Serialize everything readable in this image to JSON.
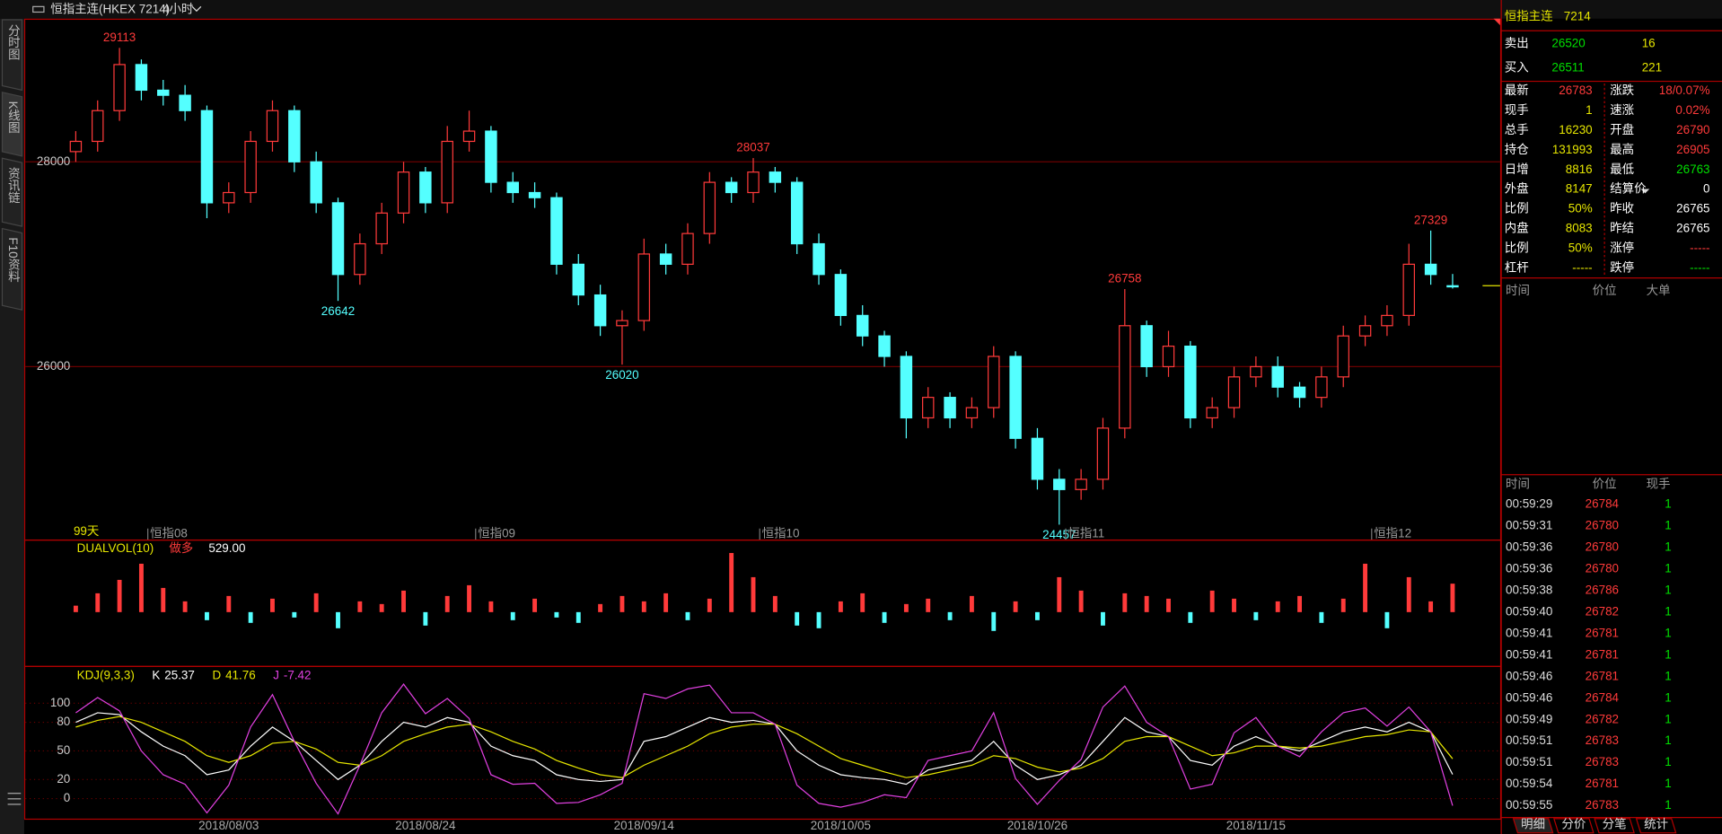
{
  "toolbar": {
    "title": "恒指主连(HKEX 7214)",
    "period": "4小时"
  },
  "side_tabs": [
    "分时图",
    "K线图",
    "资讯链",
    "F10资料"
  ],
  "chart_data": [
    {
      "type": "candlestick",
      "range_label": "99天",
      "categories": [
        null,
        null,
        null,
        null,
        "恒指08",
        null,
        null,
        null,
        null,
        null,
        null,
        null,
        null,
        null,
        null,
        null,
        null,
        null,
        null,
        "恒指09",
        null,
        null,
        null,
        null,
        null,
        null,
        null,
        null,
        null,
        null,
        null,
        null,
        "恒指10",
        null,
        null,
        null,
        null,
        null,
        null,
        null,
        null,
        null,
        null,
        null,
        null,
        null,
        "恒指11",
        null,
        null,
        null,
        null,
        null,
        null,
        null,
        null,
        null,
        null,
        null,
        null,
        null,
        "恒指12",
        null,
        null,
        null
      ],
      "open": [
        28100,
        28200,
        28500,
        28950,
        28700,
        28650,
        28500,
        27600,
        27700,
        28200,
        28500,
        28000,
        27600,
        26900,
        27200,
        27500,
        27900,
        27600,
        28200,
        28300,
        27800,
        27700,
        27650,
        27000,
        26700,
        26400,
        26450,
        27100,
        27000,
        27300,
        27800,
        27700,
        27900,
        27800,
        27200,
        26900,
        26500,
        26300,
        26100,
        25500,
        25700,
        25500,
        25600,
        26100,
        25300,
        24900,
        24800,
        24900,
        25400,
        26400,
        26000,
        26200,
        25500,
        25600,
        25900,
        26000,
        25800,
        25700,
        25900,
        26300,
        26400,
        26500,
        27000,
        26790
      ],
      "high": [
        28300,
        28600,
        29113,
        29000,
        28800,
        28750,
        28550,
        27800,
        28300,
        28600,
        28550,
        28100,
        27650,
        27300,
        27600,
        28000,
        27950,
        28350,
        28500,
        28350,
        27900,
        27800,
        27700,
        27100,
        26800,
        26550,
        27250,
        27200,
        27400,
        27900,
        27850,
        28037,
        27950,
        27850,
        27300,
        26950,
        26600,
        26350,
        26150,
        25800,
        25750,
        25700,
        26200,
        26150,
        25400,
        25000,
        25000,
        25500,
        26758,
        26450,
        26350,
        26250,
        25700,
        26000,
        26100,
        26100,
        25850,
        26000,
        26400,
        26500,
        26600,
        27200,
        27329,
        26905
      ],
      "low": [
        28000,
        28100,
        28400,
        28600,
        28550,
        28400,
        27450,
        27500,
        27600,
        28100,
        27900,
        27500,
        26642,
        26800,
        27100,
        27400,
        27500,
        27500,
        28100,
        27700,
        27600,
        27550,
        26900,
        26600,
        26300,
        26020,
        26350,
        26900,
        26900,
        27200,
        27600,
        27600,
        27700,
        27100,
        26800,
        26400,
        26200,
        26000,
        25300,
        25400,
        25400,
        25400,
        25500,
        25200,
        24800,
        24457,
        24700,
        24800,
        25300,
        25900,
        25900,
        25400,
        25400,
        25500,
        25800,
        25700,
        25600,
        25600,
        25800,
        26200,
        26300,
        26400,
        26800,
        26763
      ],
      "close": [
        28200,
        28500,
        28950,
        28700,
        28650,
        28500,
        27600,
        27700,
        28200,
        28500,
        28000,
        27600,
        26900,
        27200,
        27500,
        27900,
        27600,
        28200,
        28300,
        27800,
        27700,
        27650,
        27000,
        26700,
        26400,
        26450,
        27100,
        27000,
        27300,
        27800,
        27700,
        27900,
        27800,
        27200,
        26900,
        26500,
        26300,
        26100,
        25500,
        25700,
        25500,
        25600,
        26100,
        25300,
        24900,
        24800,
        24900,
        25400,
        26400,
        26000,
        26200,
        25500,
        25600,
        25900,
        26000,
        25800,
        25700,
        25900,
        26300,
        26400,
        26500,
        27000,
        26900,
        26783
      ],
      "high_labels": [
        null,
        null,
        29113,
        null,
        null,
        null,
        null,
        null,
        null,
        null,
        null,
        null,
        null,
        null,
        null,
        null,
        null,
        null,
        null,
        null,
        null,
        null,
        null,
        null,
        null,
        null,
        null,
        null,
        null,
        null,
        null,
        28037,
        null,
        null,
        null,
        null,
        null,
        null,
        null,
        null,
        null,
        null,
        null,
        null,
        null,
        null,
        null,
        null,
        26758,
        null,
        null,
        null,
        null,
        null,
        null,
        null,
        null,
        null,
        null,
        null,
        null,
        null,
        27329,
        null
      ],
      "low_labels": [
        null,
        null,
        null,
        null,
        null,
        null,
        null,
        null,
        null,
        null,
        null,
        null,
        26642,
        null,
        null,
        null,
        null,
        null,
        null,
        null,
        null,
        null,
        null,
        null,
        null,
        26020,
        null,
        null,
        null,
        null,
        null,
        null,
        null,
        null,
        null,
        null,
        null,
        null,
        null,
        null,
        null,
        null,
        null,
        null,
        null,
        24457,
        null,
        null,
        null,
        null,
        null,
        null,
        null,
        null,
        null,
        null,
        null,
        null,
        null,
        null,
        null,
        null,
        null,
        null
      ],
      "ylim": [
        24312,
        29398
      ],
      "yticks": [
        26000,
        28000
      ],
      "grid": true,
      "up_color": "#ff3a3a",
      "down_color": "#54ffff"
    },
    {
      "type": "bar",
      "title": "DUALVOL(10)",
      "signal": "做多",
      "current": {
        "value": 529,
        "label": "529.00"
      },
      "values": [
        120,
        350,
        600,
        900,
        450,
        200,
        -150,
        300,
        -200,
        250,
        -100,
        350,
        -300,
        200,
        150,
        400,
        -250,
        300,
        500,
        200,
        -150,
        250,
        -100,
        -200,
        150,
        300,
        200,
        350,
        -150,
        250,
        1100,
        650,
        300,
        -250,
        -300,
        200,
        350,
        -200,
        150,
        250,
        -150,
        300,
        -350,
        200,
        -150,
        650,
        400,
        -250,
        350,
        300,
        250,
        -200,
        400,
        250,
        -150,
        200,
        300,
        -200,
        250,
        900,
        -300,
        650,
        200,
        529
      ],
      "ylim": [
        -1000,
        1330
      ],
      "up_color": "#ff3a3a",
      "down_color": "#54ffff"
    },
    {
      "type": "line",
      "title": "KDJ(9,3,3)",
      "categories": [
        null,
        null,
        null,
        null,
        null,
        null,
        null,
        "2018/08/03",
        null,
        null,
        null,
        null,
        null,
        null,
        null,
        null,
        "2018/08/24",
        null,
        null,
        null,
        null,
        null,
        null,
        null,
        null,
        null,
        "2018/09/14",
        null,
        null,
        null,
        null,
        null,
        null,
        null,
        null,
        "2018/10/05",
        null,
        null,
        null,
        null,
        null,
        null,
        null,
        null,
        "2018/10/26",
        null,
        null,
        null,
        null,
        null,
        null,
        null,
        null,
        null,
        "2018/11/15",
        null,
        null,
        null,
        null,
        null,
        null,
        null,
        null,
        null
      ],
      "series": [
        {
          "name": "K",
          "color": "#ffffff",
          "values": [
            80,
            90,
            88,
            70,
            55,
            45,
            25,
            30,
            55,
            75,
            60,
            40,
            20,
            35,
            60,
            80,
            75,
            85,
            80,
            55,
            45,
            40,
            25,
            20,
            18,
            20,
            60,
            65,
            75,
            85,
            80,
            82,
            78,
            50,
            35,
            25,
            22,
            20,
            15,
            30,
            35,
            40,
            60,
            35,
            20,
            25,
            35,
            60,
            85,
            70,
            65,
            40,
            35,
            55,
            65,
            55,
            50,
            60,
            70,
            75,
            70,
            80,
            70,
            25.37
          ]
        },
        {
          "name": "D",
          "color": "#e6e600",
          "values": [
            75,
            82,
            86,
            80,
            70,
            60,
            45,
            38,
            45,
            58,
            60,
            52,
            38,
            35,
            45,
            60,
            68,
            75,
            78,
            70,
            60,
            52,
            40,
            32,
            25,
            22,
            35,
            45,
            55,
            68,
            75,
            78,
            78,
            68,
            55,
            42,
            35,
            28,
            22,
            25,
            30,
            35,
            45,
            42,
            33,
            28,
            32,
            42,
            60,
            65,
            65,
            55,
            45,
            48,
            55,
            55,
            53,
            55,
            60,
            65,
            67,
            72,
            70,
            41.76
          ]
        },
        {
          "name": "J",
          "color": "#e040e0",
          "values": [
            90,
            106,
            92,
            50,
            25,
            15,
            -15,
            14,
            75,
            109,
            60,
            16,
            -16,
            35,
            90,
            120,
            89,
            105,
            84,
            25,
            15,
            16,
            -5,
            -4,
            4,
            16,
            110,
            105,
            115,
            119,
            90,
            90,
            78,
            14,
            -5,
            -9,
            -4,
            4,
            1,
            40,
            45,
            50,
            90,
            21,
            -6,
            19,
            41,
            96,
            118,
            80,
            65,
            10,
            15,
            69,
            85,
            55,
            44,
            70,
            90,
            95,
            76,
            96,
            70,
            -7.42
          ]
        }
      ],
      "ylim": [
        -21,
        138
      ],
      "yticks": [
        0,
        20,
        50,
        80,
        100
      ],
      "grid": true
    }
  ],
  "quote": {
    "name": "恒指主连",
    "code": 7214,
    "ask": {
      "label": "卖出",
      "price": 26520,
      "size": 16
    },
    "bid": {
      "label": "买入",
      "price": 26511,
      "size": 221
    },
    "stats": [
      {
        "left": {
          "label": "最新",
          "value": 26783,
          "color": "#ff3a3a"
        },
        "right": {
          "label": "涨跌",
          "value": "18/0.07%",
          "color": "#ff3a3a"
        }
      },
      {
        "left": {
          "label": "现手",
          "value": 1,
          "color": "#e6e600"
        },
        "right": {
          "label": "速涨",
          "value": "0.02%",
          "color": "#ff3a3a"
        }
      },
      {
        "left": {
          "label": "总手",
          "value": 16230,
          "color": "#e6e600"
        },
        "right": {
          "label": "开盘",
          "value": 26790,
          "color": "#ff3a3a"
        }
      },
      {
        "left": {
          "label": "持仓",
          "value": 131993,
          "color": "#e6e600"
        },
        "right": {
          "label": "最高",
          "value": 26905,
          "color": "#ff3a3a"
        }
      },
      {
        "left": {
          "label": "日增",
          "value": 8816,
          "color": "#e6e600"
        },
        "right": {
          "label": "最低",
          "value": 26763,
          "color": "#00e000"
        }
      },
      {
        "left": {
          "label": "外盘",
          "value": 8147,
          "color": "#e6e600"
        },
        "right": {
          "label": "结算价",
          "value": 0,
          "color": "#ffffff"
        }
      },
      {
        "left": {
          "label": "比例",
          "value": "50%",
          "color": "#e6e600"
        },
        "right": {
          "label": "昨收",
          "value": 26765,
          "color": "#ffffff"
        }
      },
      {
        "left": {
          "label": "内盘",
          "value": 8083,
          "color": "#e6e600"
        },
        "right": {
          "label": "昨结",
          "value": 26765,
          "color": "#ffffff"
        }
      },
      {
        "left": {
          "label": "比例",
          "value": "50%",
          "color": "#e6e600"
        },
        "right": {
          "label": "涨停",
          "value": "-----",
          "color": "#ff3a3a"
        }
      },
      {
        "left": {
          "label": "杠杆",
          "value": "-----",
          "color": "#e6e600"
        },
        "right": {
          "label": "跌停",
          "value": "-----",
          "color": "#00e000"
        }
      }
    ],
    "big_orders": {
      "headers": [
        "时间",
        "价位",
        "大单"
      ]
    },
    "trades": {
      "headers": [
        "时间",
        "价位",
        "现手"
      ],
      "rows": [
        [
          "00:59:29",
          26784,
          1
        ],
        [
          "00:59:31",
          26780,
          1
        ],
        [
          "00:59:36",
          26780,
          1
        ],
        [
          "00:59:36",
          26780,
          1
        ],
        [
          "00:59:38",
          26786,
          1
        ],
        [
          "00:59:40",
          26782,
          1
        ],
        [
          "00:59:41",
          26781,
          1
        ],
        [
          "00:59:41",
          26781,
          1
        ],
        [
          "00:59:46",
          26781,
          1
        ],
        [
          "00:59:46",
          26784,
          1
        ],
        [
          "00:59:49",
          26782,
          1
        ],
        [
          "00:59:51",
          26783,
          1
        ],
        [
          "00:59:51",
          26783,
          1
        ],
        [
          "00:59:54",
          26781,
          1
        ],
        [
          "00:59:55",
          26783,
          1
        ]
      ]
    },
    "tabs": [
      "明细",
      "分价",
      "分笔",
      "统计"
    ]
  }
}
